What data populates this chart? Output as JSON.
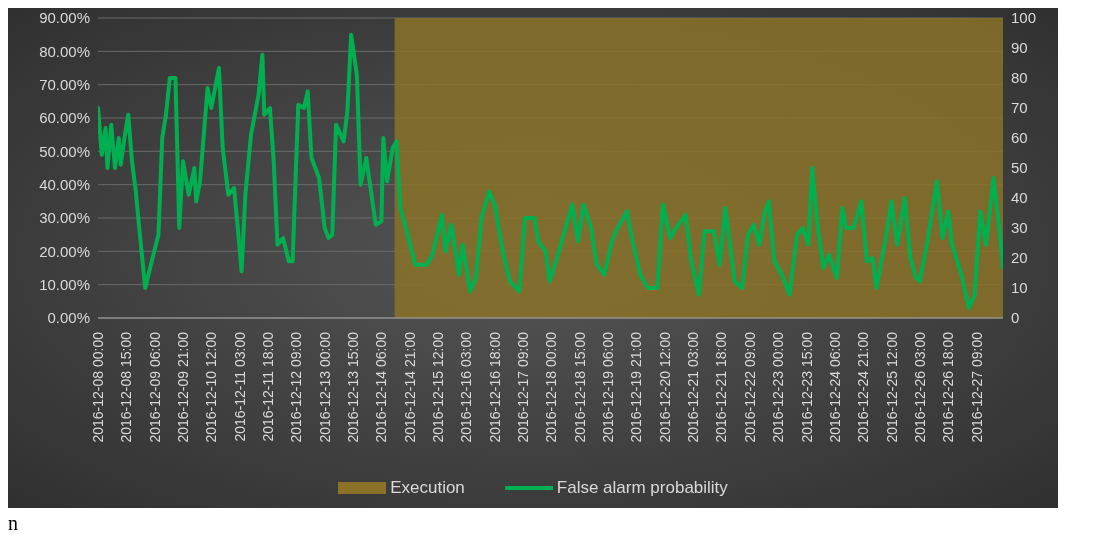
{
  "chart_data": {
    "type": "line",
    "x": [
      "2016-12-08T00:00",
      "2016-12-08T02:00",
      "2016-12-08T04:00",
      "2016-12-08T05:00",
      "2016-12-08T07:00",
      "2016-12-08T09:00",
      "2016-12-08T11:00",
      "2016-12-08T12:00",
      "2016-12-08T14:00",
      "2016-12-08T16:00",
      "2016-12-08T18:00",
      "2016-12-08T20:00",
      "2016-12-08T22:00",
      "2016-12-09T01:00",
      "2016-12-09T04:00",
      "2016-12-09T08:00",
      "2016-12-09T10:00",
      "2016-12-09T12:00",
      "2016-12-09T14:00",
      "2016-12-09T17:00",
      "2016-12-09T19:00",
      "2016-12-09T21:00",
      "2016-12-10T00:00",
      "2016-12-10T03:00",
      "2016-12-10T04:00",
      "2016-12-10T06:00",
      "2016-12-10T10:00",
      "2016-12-10T12:00",
      "2016-12-10T14:00",
      "2016-12-10T16:00",
      "2016-12-10T18:00",
      "2016-12-10T21:00",
      "2016-12-11T00:00",
      "2016-12-11T02:00",
      "2016-12-11T04:00",
      "2016-12-11T06:00",
      "2016-12-11T09:00",
      "2016-12-11T13:00",
      "2016-12-11T15:00",
      "2016-12-11T16:00",
      "2016-12-11T19:00",
      "2016-12-11T21:00",
      "2016-12-11T23:00",
      "2016-12-12T02:00",
      "2016-12-12T05:00",
      "2016-12-12T07:00",
      "2016-12-12T10:00",
      "2016-12-12T13:00",
      "2016-12-12T15:00",
      "2016-12-12T17:00",
      "2016-12-12T21:00",
      "2016-12-13T00:00",
      "2016-12-13T02:00",
      "2016-12-13T04:00",
      "2016-12-13T06:00",
      "2016-12-13T10:00",
      "2016-12-13T12:00",
      "2016-12-13T14:00",
      "2016-12-13T17:00",
      "2016-12-13T19:00",
      "2016-12-13T22:00",
      "2016-12-14T00:00",
      "2016-12-14T03:00",
      "2016-12-14T06:00",
      "2016-12-14T07:00",
      "2016-12-14T09:00",
      "2016-12-14T12:00",
      "2016-12-14T14:00",
      "2016-12-14T16:00",
      "2016-12-14T19:00",
      "2016-12-14T22:00",
      "2016-12-15T00:00",
      "2016-12-15T06:00",
      "2016-12-15T09:00",
      "2016-12-15T14:00",
      "2016-12-15T16:00",
      "2016-12-15T19:00",
      "2016-12-15T23:00",
      "2016-12-16T01:00",
      "2016-12-16T05:00",
      "2016-12-16T08:00",
      "2016-12-16T11:00",
      "2016-12-16T15:00",
      "2016-12-16T18:00",
      "2016-12-16T21:00",
      "2016-12-16T23:00",
      "2016-12-17T02:00",
      "2016-12-17T07:00",
      "2016-12-17T10:00",
      "2016-12-17T15:00",
      "2016-12-17T17:00",
      "2016-12-17T21:00",
      "2016-12-17T23:00",
      "2016-12-18T03:00",
      "2016-12-18T07:00",
      "2016-12-18T11:00",
      "2016-12-18T14:00",
      "2016-12-18T17:00",
      "2016-12-18T21:00",
      "2016-12-19T00:00",
      "2016-12-19T04:00",
      "2016-12-19T08:00",
      "2016-12-19T11:00",
      "2016-12-19T16:00",
      "2016-12-19T19:00",
      "2016-12-19T23:00",
      "2016-12-20T03:00",
      "2016-12-20T08:00",
      "2016-12-20T11:00",
      "2016-12-20T15:00",
      "2016-12-20T18:00",
      "2016-12-20T23:00",
      "2016-12-21T02:00",
      "2016-12-21T06:00",
      "2016-12-21T09:00",
      "2016-12-21T14:00",
      "2016-12-21T17:00",
      "2016-12-21T20:00",
      "2016-12-21T23:00",
      "2016-12-22T01:00",
      "2016-12-22T05:00",
      "2016-12-22T08:00",
      "2016-12-22T11:00",
      "2016-12-22T14:00",
      "2016-12-22T17:00",
      "2016-12-22T19:00",
      "2016-12-22T22:00",
      "2016-12-23T02:00",
      "2016-12-23T06:00",
      "2016-12-23T10:00",
      "2016-12-23T13:00",
      "2016-12-23T16:00",
      "2016-12-23T18:00",
      "2016-12-23T21:00",
      "2016-12-24T00:00",
      "2016-12-24T03:00",
      "2016-12-24T07:00",
      "2016-12-24T10:00",
      "2016-12-24T12:00",
      "2016-12-24T16:00",
      "2016-12-24T20:00",
      "2016-12-24T23:00",
      "2016-12-25T02:00",
      "2016-12-25T04:00",
      "2016-12-25T09:00",
      "2016-12-25T12:00",
      "2016-12-25T15:00",
      "2016-12-25T19:00",
      "2016-12-25T22:00",
      "2016-12-26T01:00",
      "2016-12-26T03:00",
      "2016-12-26T07:00",
      "2016-12-26T12:00",
      "2016-12-26T15:00",
      "2016-12-26T18:00",
      "2016-12-26T20:00",
      "2016-12-27T01:00",
      "2016-12-27T05:00",
      "2016-12-27T08:00",
      "2016-12-27T11:00",
      "2016-12-27T14:00",
      "2016-12-27T18:00",
      "2016-12-27T21:00",
      "2016-12-27T23:00"
    ],
    "series": [
      {
        "name": "False alarm probability",
        "color": "#00b050",
        "values": [
          63,
          49,
          57,
          45,
          58,
          45,
          54,
          46,
          54,
          61,
          47,
          38,
          26,
          9,
          16,
          25,
          54,
          61,
          72,
          72,
          27,
          47,
          37,
          45,
          35,
          41,
          69,
          63,
          69,
          75,
          51,
          37,
          39,
          27,
          14,
          37,
          55,
          67,
          79,
          61,
          63,
          47,
          22,
          24,
          17,
          17,
          64,
          63,
          68,
          48,
          42,
          27,
          24,
          25,
          58,
          53,
          62,
          85,
          73,
          40,
          48,
          40,
          28,
          29,
          54,
          41,
          51,
          53,
          33,
          27,
          20,
          16,
          16,
          19,
          31,
          20,
          28,
          13,
          22,
          8,
          12,
          30,
          38,
          34,
          24,
          18,
          11,
          8,
          30,
          30,
          23,
          20,
          11,
          18,
          26,
          34,
          23,
          34,
          27,
          16,
          13,
          23,
          27,
          32,
          23,
          13,
          9,
          9,
          34,
          24,
          27,
          31,
          17,
          7,
          26,
          26,
          16,
          33,
          20,
          11,
          9,
          25,
          28,
          22,
          32,
          35,
          17,
          13,
          7,
          25,
          27,
          22,
          45,
          27,
          15,
          19,
          12,
          33,
          27,
          27,
          35,
          17,
          18,
          9,
          24,
          35,
          22,
          36,
          18,
          12,
          11,
          23,
          41,
          24,
          32,
          22,
          13,
          3,
          7,
          32,
          22,
          42,
          27,
          15
        ]
      }
    ],
    "xlim": [
      "2016-12-08T00:00",
      "2016-12-27T23:00"
    ],
    "xticks": [
      {
        "value": "2016-12-08T00:00",
        "label": "2016-12-08 00:00"
      },
      {
        "value": "2016-12-08T15:00",
        "label": "2016-12-08 15:00"
      },
      {
        "value": "2016-12-09T06:00",
        "label": "2016-12-09 06:00"
      },
      {
        "value": "2016-12-09T21:00",
        "label": "2016-12-09 21:00"
      },
      {
        "value": "2016-12-10T12:00",
        "label": "2016-12-10 12:00"
      },
      {
        "value": "2016-12-11T03:00",
        "label": "2016-12-11 03:00"
      },
      {
        "value": "2016-12-11T18:00",
        "label": "2016-12-11 18:00"
      },
      {
        "value": "2016-12-12T09:00",
        "label": "2016-12-12 09:00"
      },
      {
        "value": "2016-12-13T00:00",
        "label": "2016-12-13 00:00"
      },
      {
        "value": "2016-12-13T15:00",
        "label": "2016-12-13 15:00"
      },
      {
        "value": "2016-12-14T06:00",
        "label": "2016-12-14 06:00"
      },
      {
        "value": "2016-12-14T21:00",
        "label": "2016-12-14 21:00"
      },
      {
        "value": "2016-12-15T12:00",
        "label": "2016-12-15 12:00"
      },
      {
        "value": "2016-12-16T03:00",
        "label": "2016-12-16 03:00"
      },
      {
        "value": "2016-12-16T18:00",
        "label": "2016-12-16 18:00"
      },
      {
        "value": "2016-12-17T09:00",
        "label": "2016-12-17 09:00"
      },
      {
        "value": "2016-12-18T00:00",
        "label": "2016-12-18 00:00"
      },
      {
        "value": "2016-12-18T15:00",
        "label": "2016-12-18 15:00"
      },
      {
        "value": "2016-12-19T06:00",
        "label": "2016-12-19 06:00"
      },
      {
        "value": "2016-12-19T21:00",
        "label": "2016-12-19 21:00"
      },
      {
        "value": "2016-12-20T12:00",
        "label": "2016-12-20 12:00"
      },
      {
        "value": "2016-12-21T03:00",
        "label": "2016-12-21 03:00"
      },
      {
        "value": "2016-12-21T18:00",
        "label": "2016-12-21 18:00"
      },
      {
        "value": "2016-12-22T09:00",
        "label": "2016-12-22 09:00"
      },
      {
        "value": "2016-12-23T00:00",
        "label": "2016-12-23 00:00"
      },
      {
        "value": "2016-12-23T15:00",
        "label": "2016-12-23 15:00"
      },
      {
        "value": "2016-12-24T06:00",
        "label": "2016-12-24 06:00"
      },
      {
        "value": "2016-12-24T21:00",
        "label": "2016-12-24 21:00"
      },
      {
        "value": "2016-12-25T12:00",
        "label": "2016-12-25 12:00"
      },
      {
        "value": "2016-12-26T03:00",
        "label": "2016-12-26 03:00"
      },
      {
        "value": "2016-12-26T18:00",
        "label": "2016-12-26 18:00"
      },
      {
        "value": "2016-12-27T09:00",
        "label": "2016-12-27 09:00"
      }
    ],
    "ylim": [
      0,
      90
    ],
    "yticks": [
      {
        "value": 0,
        "label": "0.00%"
      },
      {
        "value": 10,
        "label": "10.00%"
      },
      {
        "value": 20,
        "label": "20.00%"
      },
      {
        "value": 30,
        "label": "30.00%"
      },
      {
        "value": 40,
        "label": "40.00%"
      },
      {
        "value": 50,
        "label": "50.00%"
      },
      {
        "value": 60,
        "label": "60.00%"
      },
      {
        "value": 70,
        "label": "70.00%"
      },
      {
        "value": 80,
        "label": "80.00%"
      },
      {
        "value": 90,
        "label": "90.00%"
      }
    ],
    "y2lim": [
      0,
      100
    ],
    "y2ticks": [
      0,
      10,
      20,
      30,
      40,
      50,
      60,
      70,
      80,
      90,
      100
    ],
    "bands": [
      {
        "axis": "x",
        "from": "2016-12-14T13:00",
        "to": "2016-12-27T23:00",
        "label": "Execution",
        "color": "#8a7228"
      }
    ],
    "grid": "y",
    "legend": "bottom",
    "marker": "none",
    "line_style": "solid",
    "annotations": [
      "n"
    ]
  }
}
